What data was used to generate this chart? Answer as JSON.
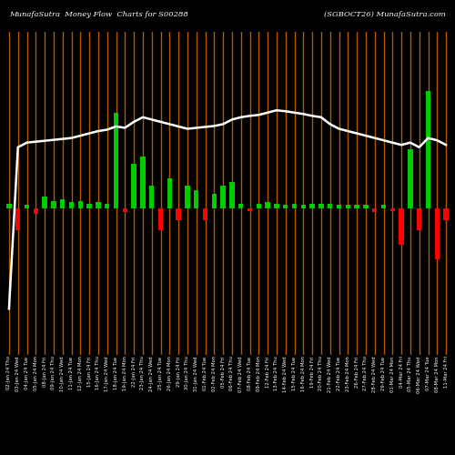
{
  "title_left": "MunafaSutra  Money Flow  Charts for S00288",
  "title_right": "(SGBOCT26) MunafaSutra.com",
  "background_color": "#000000",
  "line_color": "#ffffff",
  "categories": [
    "02-Jan 24 Thu",
    "03-Jan 24 Wed",
    "04-Jan 24 Tue",
    "05-Jan 24 Mon",
    "08-Jan 24 Fri",
    "09-Jan 24 Thu",
    "10-Jan 24 Wed",
    "11-Jan 24 Tue",
    "12-Jan 24 Mon",
    "15-Jan 24 Fri",
    "16-Jan 24 Thu",
    "17-Jan 24 Wed",
    "18-Jan 24 Tue",
    "19-Jan 24 Mon",
    "22-Jan 24 Fri",
    "23-Jan 24 Thu",
    "24-Jan 24 Wed",
    "25-Jan 24 Tue",
    "26-Jan 24 Mon",
    "29-Jan 24 Fri",
    "30-Jan 24 Thu",
    "31-Jan 24 Wed",
    "01-Feb 24 Tue",
    "02-Feb 24 Mon",
    "05-Feb 24 Fri",
    "06-Feb 24 Thu",
    "07-Feb 24 Wed",
    "08-Feb 24 Tue",
    "09-Feb 24 Mon",
    "12-Feb 24 Fri",
    "13-Feb 24 Thu",
    "14-Feb 24 Wed",
    "15-Feb 24 Tue",
    "16-Feb 24 Mon",
    "19-Feb 24 Fri",
    "20-Feb 24 Thu",
    "21-Feb 24 Wed",
    "22-Feb 24 Tue",
    "23-Feb 24 Mon",
    "26-Feb 24 Fri",
    "27-Feb 24 Thu",
    "28-Feb 24 Wed",
    "29-Feb 24 Tue",
    "01-Mar 24 Mon",
    "04-Mar 24 Fri",
    "05-Mar 24 Thu",
    "06-Mar 24 Wed",
    "07-Mar 24 Tue",
    "08-Mar 24 Mon",
    "11-Mar 24 Fri"
  ],
  "bar_values": [
    0.3,
    -1.5,
    0.2,
    -0.4,
    0.8,
    0.5,
    0.6,
    0.4,
    0.5,
    0.3,
    0.4,
    0.3,
    6.5,
    -0.3,
    3.0,
    3.5,
    1.5,
    -1.5,
    2.0,
    -0.8,
    1.5,
    1.2,
    -0.8,
    1.0,
    1.5,
    1.8,
    0.3,
    -0.2,
    0.3,
    0.4,
    0.3,
    0.2,
    0.3,
    0.2,
    0.3,
    0.3,
    0.3,
    0.2,
    0.2,
    0.2,
    0.2,
    -0.3,
    0.2,
    -0.2,
    -2.5,
    4.0,
    -1.5,
    8.0,
    -3.5,
    -0.8
  ],
  "bar_colors": [
    "#00cc00",
    "#ff0000",
    "#00cc00",
    "#ff0000",
    "#00cc00",
    "#00cc00",
    "#00cc00",
    "#00cc00",
    "#00cc00",
    "#00cc00",
    "#00cc00",
    "#00cc00",
    "#00cc00",
    "#ff0000",
    "#00cc00",
    "#00cc00",
    "#00cc00",
    "#ff0000",
    "#00cc00",
    "#ff0000",
    "#00cc00",
    "#00cc00",
    "#ff0000",
    "#00cc00",
    "#00cc00",
    "#00cc00",
    "#00cc00",
    "#ff0000",
    "#00cc00",
    "#00cc00",
    "#00cc00",
    "#00cc00",
    "#00cc00",
    "#00cc00",
    "#00cc00",
    "#00cc00",
    "#00cc00",
    "#00cc00",
    "#00cc00",
    "#00cc00",
    "#00cc00",
    "#ff0000",
    "#00cc00",
    "#ff0000",
    "#ff0000",
    "#00cc00",
    "#ff0000",
    "#00cc00",
    "#ff0000",
    "#ff0000"
  ],
  "line_values": [
    1.0,
    4.5,
    4.6,
    4.62,
    4.64,
    4.66,
    4.68,
    4.7,
    4.75,
    4.8,
    4.85,
    4.88,
    4.95,
    4.92,
    5.05,
    5.15,
    5.1,
    5.05,
    5.0,
    4.95,
    4.9,
    4.92,
    4.94,
    4.96,
    5.0,
    5.1,
    5.15,
    5.18,
    5.2,
    5.25,
    5.3,
    5.28,
    5.25,
    5.22,
    5.18,
    5.15,
    5.0,
    4.9,
    4.85,
    4.8,
    4.75,
    4.7,
    4.65,
    4.6,
    4.55,
    4.6,
    4.5,
    4.7,
    4.65,
    4.55
  ],
  "ylim_bar": [
    -10,
    12
  ],
  "ylim_line_min": 0.0,
  "ylim_line_max": 7.0,
  "vertical_line_color": "#b35900",
  "vertical_line_alpha": 1.0,
  "figsize": [
    5.0,
    5.0
  ],
  "dpi": 100
}
